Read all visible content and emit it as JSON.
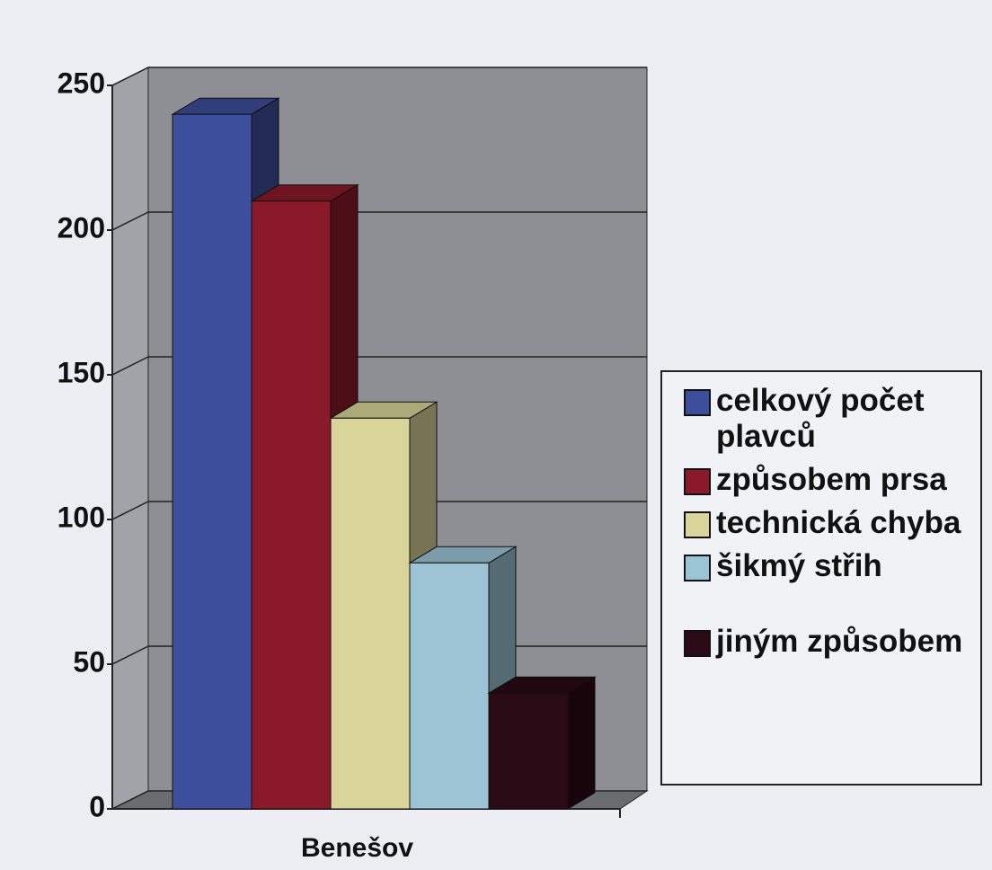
{
  "chart_data": {
    "type": "bar3d",
    "categories": [
      "Benešov"
    ],
    "series": [
      {
        "name": "celkový počet plavců",
        "color": "#3d4f9c",
        "values": [
          240
        ]
      },
      {
        "name": "způsobem prsa",
        "color": "#8a1a2a",
        "values": [
          210
        ]
      },
      {
        "name": "technická chyba",
        "color": "#d8d49a",
        "values": [
          135
        ]
      },
      {
        "name": "šikmý střih",
        "color": "#9cc4d4",
        "values": [
          85
        ]
      },
      {
        "name": "jiným způsobem",
        "color": "#2a0a14",
        "values": [
          40
        ]
      }
    ],
    "ylim": [
      0,
      250
    ],
    "yticks": [
      0,
      50,
      100,
      150,
      200,
      250
    ],
    "grid": true,
    "legend": "right"
  }
}
